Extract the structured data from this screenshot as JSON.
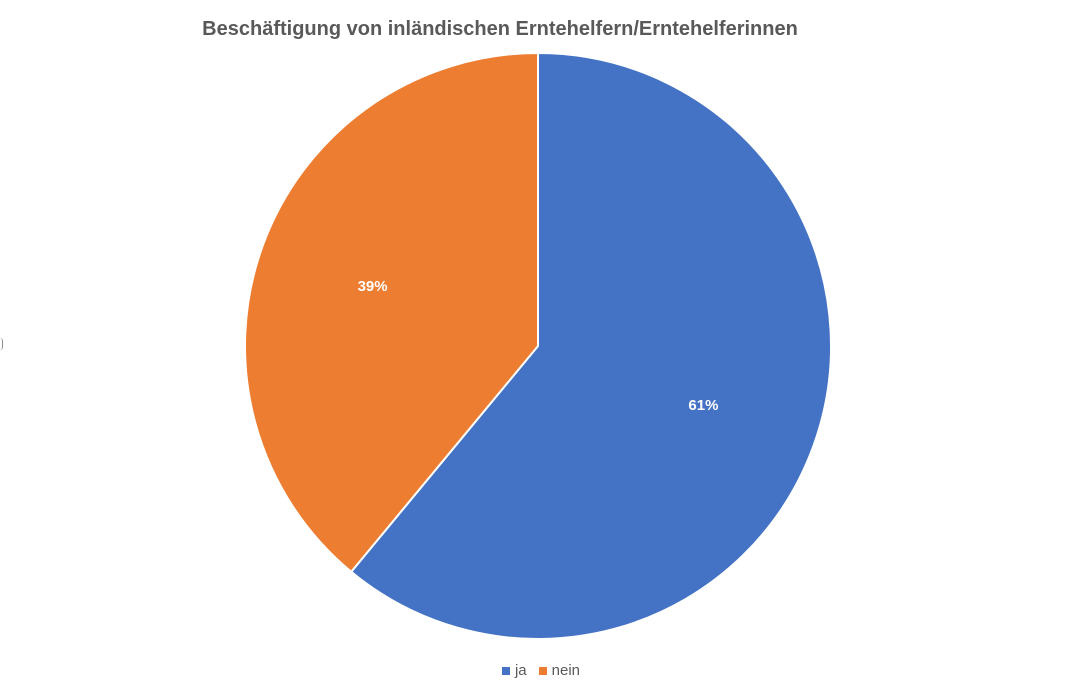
{
  "chart_data": {
    "type": "pie",
    "title": "Beschäftigung von inländischen Erntehelfern/Erntehelferinnen",
    "slices": [
      {
        "label": "ja",
        "value": 61,
        "display": "61%",
        "color": "#4472C4"
      },
      {
        "label": "nein",
        "value": 39,
        "display": "39%",
        "color": "#ED7D31"
      }
    ],
    "legend": {
      "position": "bottom",
      "items": [
        "ja",
        "nein"
      ]
    },
    "start_angle": "12 o'clock",
    "direction": "clockwise"
  }
}
